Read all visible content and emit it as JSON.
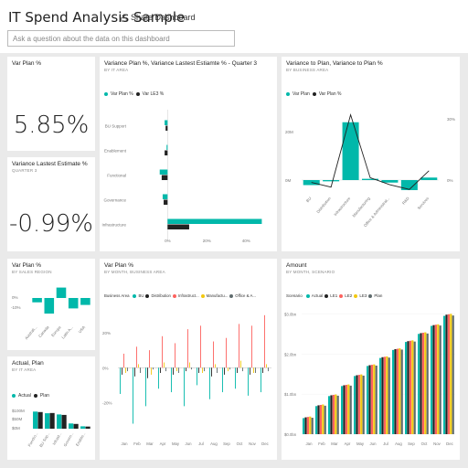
{
  "header": {
    "title": "IT Spend Analysis Sample",
    "share_label": "Share Dashboard",
    "qa_placeholder": "Ask a question about the data on this dashboard"
  },
  "colors": {
    "teal": "#01b8aa",
    "black": "#222222",
    "red": "#fd625e",
    "yellow": "#f2c80f",
    "gray": "#5f6b6d",
    "green": "#8ad4eb"
  },
  "tiles": {
    "var_plan": {
      "title": "Var Plan %",
      "value": "5.85%"
    },
    "var_le": {
      "title": "Variance Lastest Estimate %",
      "subtitle": "QUARTER 3",
      "value": "-0.99%"
    },
    "var_plan_le_q3": {
      "title": "Variance Plan %, Variance Lastest Estiamte % - Quarter 3",
      "subtitle": "BY IT AREA",
      "legend": [
        "Var Plan %",
        "Var LE3 %"
      ]
    },
    "var_to_plan": {
      "title": "Variance to Plan, Variance to Plan %",
      "subtitle": "BY BUSINESS AREA",
      "legend": [
        "Var Plan",
        "Var Plan %"
      ]
    },
    "var_plan_region": {
      "title": "Var Plan %",
      "subtitle": "BY SALES REGION"
    },
    "actual_plan": {
      "title": "Actual, Plan",
      "subtitle": "BY IT AREA",
      "legend": [
        "Actual",
        "Plan"
      ]
    },
    "var_plan_month": {
      "title": "Var Plan %",
      "subtitle": "BY MONTH, BUSINESS AREA",
      "legend_label": "Business Area",
      "legend": [
        "BU",
        "Distribution",
        "Infrastruct...",
        "Manufactu...",
        "Office & A..."
      ]
    },
    "amount": {
      "title": "Amount",
      "subtitle": "BY MONTH, SCENARIO",
      "legend_label": "Scenario",
      "legend": [
        "Actual",
        "LE1",
        "LE2",
        "LE3",
        "Plan"
      ]
    }
  },
  "chart_data": [
    {
      "type": "bar",
      "title": "Variance Plan %, Variance Lastest Estiamte % - Quarter 3",
      "categories": [
        "BU Support",
        "Enablement",
        "Functional",
        "Governance",
        "Infrastructure"
      ],
      "series": [
        {
          "name": "Var Plan %",
          "values": [
            -1.5,
            -0.5,
            -4,
            -2.5,
            48
          ]
        },
        {
          "name": "Var LE3 %",
          "values": [
            -1,
            -1.5,
            -3,
            -2,
            11
          ]
        }
      ],
      "xticks": [
        "0%",
        "20%",
        "40%"
      ],
      "xlim": [
        -9,
        52
      ]
    },
    {
      "type": "bar",
      "title": "Variance to Plan, Variance to Plan %",
      "categories": [
        "BU",
        "Distribution",
        "Infrastructure",
        "Manufacturing",
        "Office & Administrat...",
        "R&D",
        "Services"
      ],
      "series": [
        {
          "name": "Var Plan",
          "values": [
            -2,
            -0.5,
            23,
            0.5,
            -1,
            -4,
            1
          ]
        },
        {
          "name": "Var Plan %",
          "values": [
            -1,
            -3,
            28,
            1,
            -2,
            -4,
            4
          ]
        }
      ],
      "yticks_left": [
        "20M",
        "0M"
      ],
      "yticks_right": [
        "30%",
        "0%"
      ]
    },
    {
      "type": "bar",
      "title": "Var Plan %",
      "categories": [
        "Australi...",
        "Canada",
        "Europe",
        "Latin A...",
        "USA"
      ],
      "values": [
        -5,
        -18,
        12,
        -12,
        -8
      ],
      "yticks": [
        "0%",
        "-10%"
      ]
    },
    {
      "type": "bar",
      "title": "Actual, Plan",
      "categories": [
        "Functio...",
        "BU Sup...",
        "Infrast...",
        "Govern...",
        "Enable..."
      ],
      "series": [
        {
          "name": "Actual",
          "values": [
            72,
            65,
            60,
            22,
            10
          ]
        },
        {
          "name": "Plan",
          "values": [
            70,
            66,
            58,
            20,
            9
          ]
        }
      ],
      "yticks": [
        "$100M",
        "$50M",
        "$0M"
      ]
    },
    {
      "type": "bar",
      "title": "Var Plan %",
      "categories": [
        "Jan",
        "Feb",
        "Mar",
        "Apr",
        "May",
        "Jun",
        "Jul",
        "Aug",
        "Sep",
        "Oct",
        "Nov",
        "Dec"
      ],
      "series": [
        {
          "name": "BU",
          "values": [
            -15,
            -32,
            -22,
            -12,
            -14,
            -22,
            -10,
            -18,
            -14,
            -12,
            -16,
            -14
          ]
        },
        {
          "name": "Distribution",
          "values": [
            -4,
            -5,
            -6,
            -3,
            -4,
            -2,
            -3,
            -5,
            -4,
            -3,
            -4,
            -3
          ]
        },
        {
          "name": "Infrastruct...",
          "values": [
            8,
            12,
            10,
            18,
            14,
            22,
            24,
            15,
            17,
            25,
            24,
            30
          ]
        },
        {
          "name": "Manufactu...",
          "values": [
            -3,
            2,
            -4,
            3,
            -2,
            3,
            -3,
            2,
            -2,
            4,
            -3,
            2
          ]
        },
        {
          "name": "Office & A...",
          "values": [
            -2,
            -3,
            -1,
            -2,
            -3,
            -1,
            -2,
            -3,
            -1,
            -2,
            -3,
            -2
          ]
        }
      ],
      "yticks": [
        "20%",
        "0%",
        "-20%"
      ],
      "ylim": [
        -38,
        32
      ]
    },
    {
      "type": "bar",
      "title": "Amount",
      "categories": [
        "Jan",
        "Feb",
        "Mar",
        "Apr",
        "May",
        "Jun",
        "Jul",
        "Aug",
        "Sep",
        "Oct",
        "Nov",
        "Dec"
      ],
      "series": [
        {
          "name": "Actual",
          "values": [
            0.4,
            0.7,
            0.95,
            1.2,
            1.45,
            1.7,
            1.9,
            2.1,
            2.3,
            2.5,
            2.7,
            2.95
          ]
        },
        {
          "name": "LE1",
          "values": [
            0.42,
            0.72,
            0.97,
            1.22,
            1.47,
            1.72,
            1.92,
            2.12,
            2.32,
            2.52,
            2.72,
            2.98
          ]
        },
        {
          "name": "LE2",
          "values": [
            0.43,
            0.73,
            0.98,
            1.23,
            1.48,
            1.73,
            1.93,
            2.13,
            2.33,
            2.53,
            2.73,
            2.99
          ]
        },
        {
          "name": "LE3",
          "values": [
            0.44,
            0.74,
            0.99,
            1.24,
            1.49,
            1.74,
            1.94,
            2.14,
            2.34,
            2.54,
            2.74,
            3.0
          ]
        },
        {
          "name": "Plan",
          "values": [
            0.41,
            0.71,
            0.96,
            1.21,
            1.46,
            1.71,
            1.91,
            2.11,
            2.31,
            2.51,
            2.71,
            2.96
          ]
        }
      ],
      "yticks": [
        "$3.0bn",
        "$2.0bn",
        "$1.0bn",
        "$0.0bn"
      ],
      "ylim": [
        0,
        3.1
      ]
    }
  ]
}
